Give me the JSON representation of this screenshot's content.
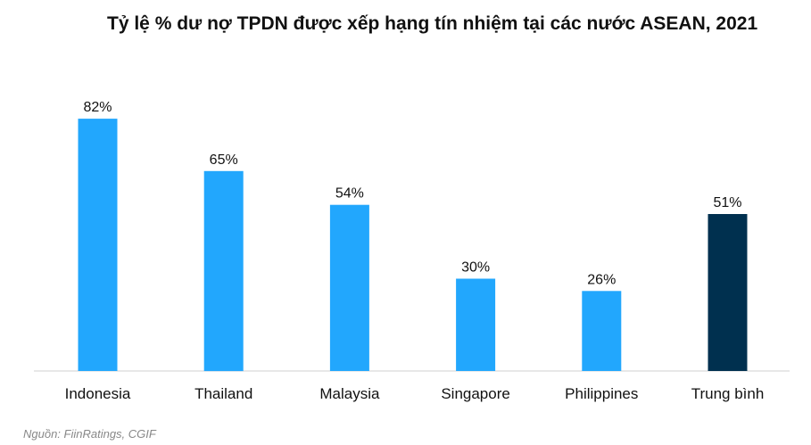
{
  "chart_data": {
    "type": "bar",
    "title": "Tỷ lệ % dư nợ TPDN được xếp hạng tín nhiệm tại các nước ASEAN, 2021",
    "categories": [
      "Indonesia",
      "Thailand",
      "Malaysia",
      "Singapore",
      "Philippines",
      "Trung bình"
    ],
    "values": [
      82,
      65,
      54,
      30,
      26,
      51
    ],
    "data_labels": [
      "82%",
      "65%",
      "54%",
      "30%",
      "26%",
      "51%"
    ],
    "bar_colors": [
      "#22a7fd",
      "#22a7fd",
      "#22a7fd",
      "#22a7fd",
      "#22a7fd",
      "#00304f"
    ],
    "xlabel": "",
    "ylabel": "",
    "ylim": [
      0,
      100
    ],
    "grid": false,
    "legend": "none"
  },
  "source": "Nguồn: FiinRatings, CGIF"
}
